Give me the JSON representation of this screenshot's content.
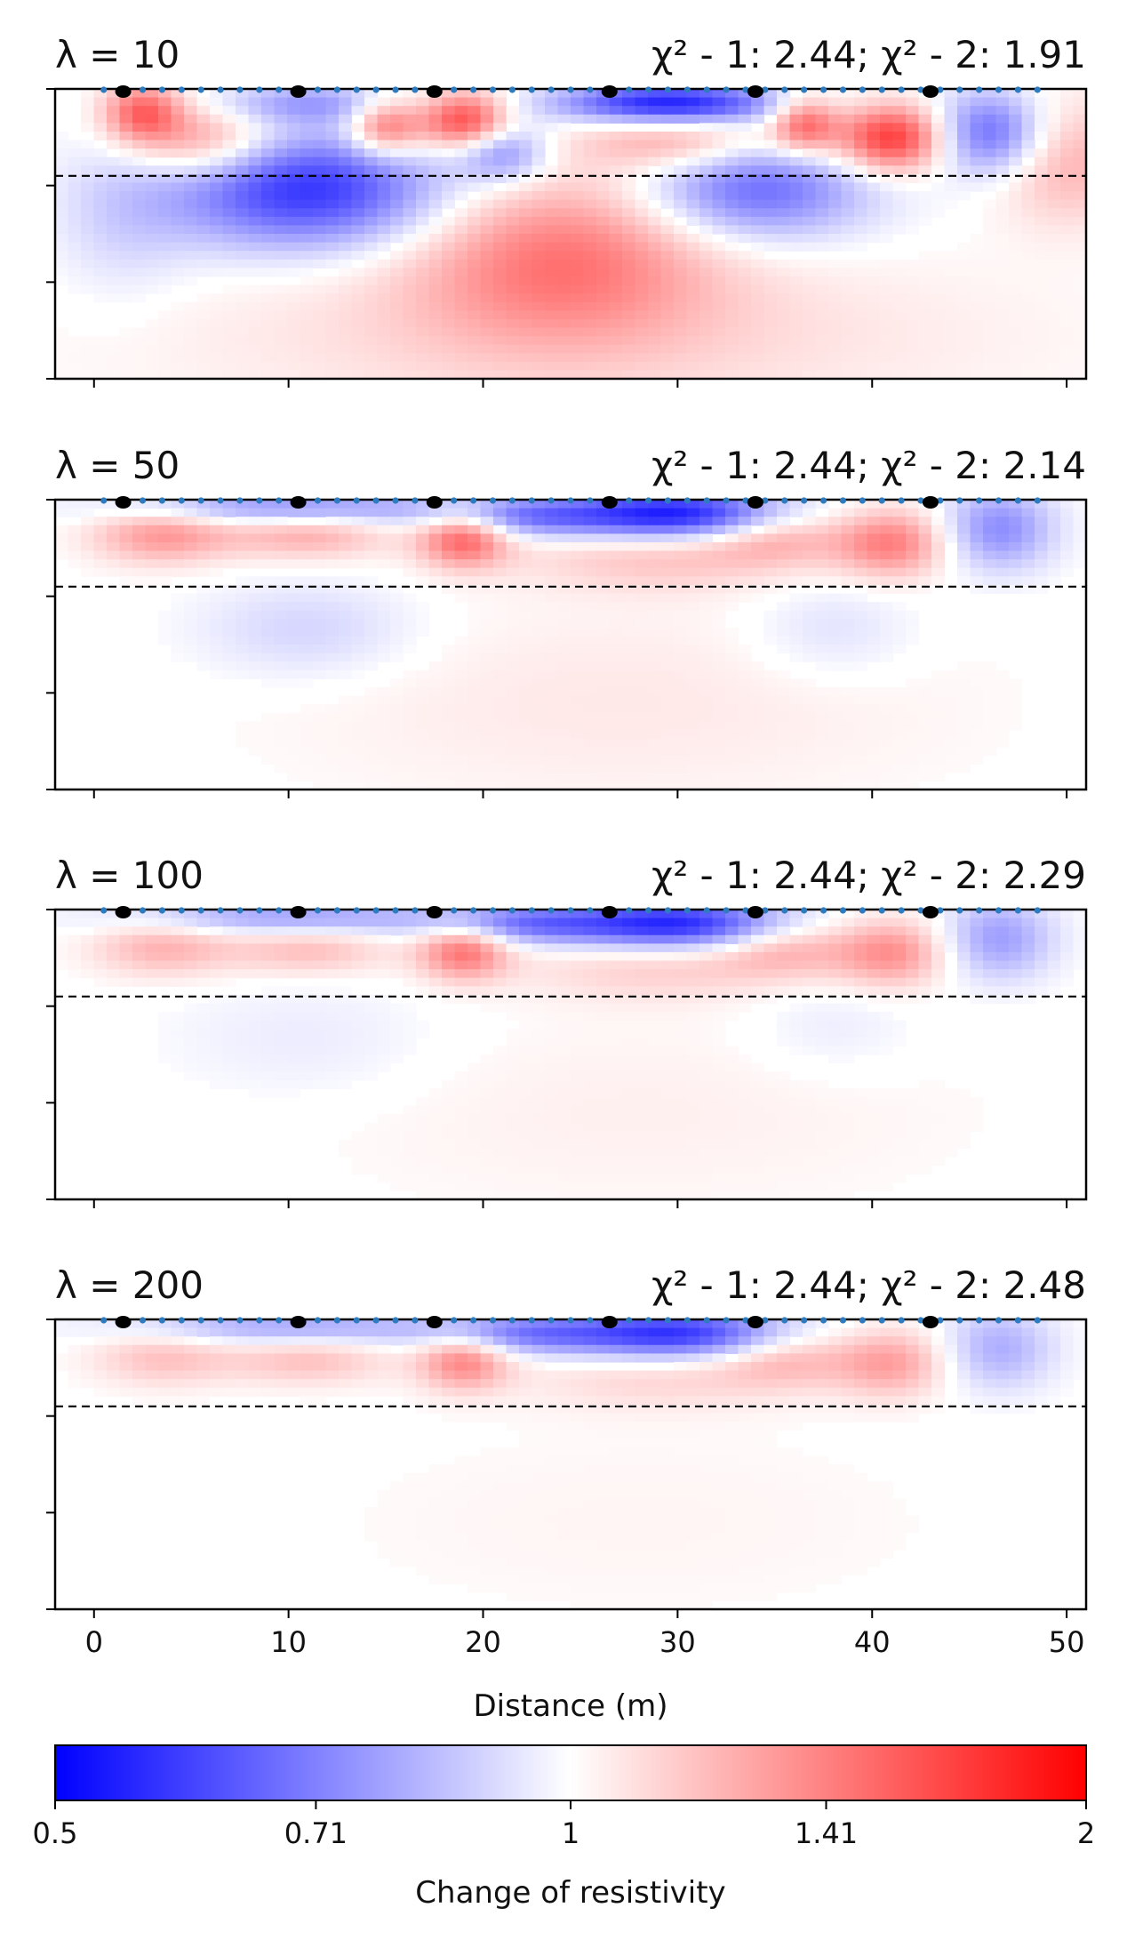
{
  "chart_data": {
    "type": "heatmap",
    "colormap": {
      "low": "#0000ff",
      "mid": "#ffffff",
      "high": "#ff0000",
      "scale": "log2"
    },
    "xlim": [
      -2,
      51
    ],
    "xticks": [
      0,
      10,
      20,
      30,
      40,
      50
    ],
    "xlabel": "Distance (m)",
    "dashed_depth_fraction": 0.3,
    "electrodes_small_x": [
      0.5,
      1.5,
      2.5,
      3.5,
      4.5,
      5.5,
      6.5,
      7.5,
      8.5,
      9.5,
      10.5,
      11.5,
      12.5,
      13.5,
      14.5,
      15.5,
      16.5,
      17.5,
      18.5,
      19.5,
      20.5,
      21.5,
      22.5,
      23.5,
      24.5,
      25.5,
      26.5,
      27.5,
      28.5,
      29.5,
      30.5,
      31.5,
      32.5,
      33.5,
      34.5,
      35.5,
      36.5,
      37.5,
      38.5,
      39.5,
      40.5,
      41.5,
      42.5,
      43.5,
      44.5,
      45.5,
      46.5,
      47.5,
      48.5
    ],
    "electrodes_large_x": [
      1.5,
      10.5,
      17.5,
      26.5,
      34,
      43
    ],
    "panels": [
      {
        "lambda_label": "λ = 10",
        "chi_label": "χ² - 1: 2.44; χ² - 2: 1.91",
        "strength": 1.0,
        "anomalies": [
          {
            "x": 2.5,
            "d": 0.08,
            "sx": 1.4,
            "sd": 0.07,
            "v": 0.6
          },
          {
            "x": 5.5,
            "d": 0.18,
            "sx": 2.6,
            "sd": 0.09,
            "v": 0.45
          },
          {
            "x": 11,
            "d": 0.35,
            "sx": 5.0,
            "sd": 0.14,
            "v": -0.8
          },
          {
            "x": 11,
            "d": 0.05,
            "sx": 3.5,
            "sd": 0.05,
            "v": -0.35
          },
          {
            "x": 15,
            "d": 0.13,
            "sx": 1.3,
            "sd": 0.07,
            "v": 0.6
          },
          {
            "x": 19,
            "d": 0.11,
            "sx": 1.6,
            "sd": 0.07,
            "v": 0.75
          },
          {
            "x": 21,
            "d": 0.22,
            "sx": 1.6,
            "sd": 0.07,
            "v": -0.45
          },
          {
            "x": 24,
            "d": 0.58,
            "sx": 5.5,
            "sd": 0.2,
            "v": 0.5
          },
          {
            "x": 29.5,
            "d": 0.05,
            "sx": 4.0,
            "sd": 0.05,
            "v": -0.9
          },
          {
            "x": 30,
            "d": 0.18,
            "sx": 3.5,
            "sd": 0.07,
            "v": 0.35
          },
          {
            "x": 34,
            "d": 0.35,
            "sx": 4.0,
            "sd": 0.12,
            "v": -0.6
          },
          {
            "x": 36.5,
            "d": 0.12,
            "sx": 1.2,
            "sd": 0.07,
            "v": 0.6
          },
          {
            "x": 41,
            "d": 0.17,
            "sx": 2.0,
            "sd": 0.08,
            "v": 0.8
          },
          {
            "x": 46,
            "d": 0.15,
            "sx": 2.0,
            "sd": 0.1,
            "v": -0.6
          },
          {
            "x": 50,
            "d": 0.25,
            "sx": 2.5,
            "sd": 0.15,
            "v": 0.3
          },
          {
            "x": 1.5,
            "d": 0.45,
            "sx": 2.5,
            "sd": 0.2,
            "v": -0.15
          },
          {
            "x": 25,
            "d": 0.85,
            "sx": 15,
            "sd": 0.2,
            "v": 0.15
          }
        ]
      },
      {
        "lambda_label": "λ = 50",
        "chi_label": "χ² - 1: 2.44; χ² - 2: 2.14",
        "strength": 0.9,
        "anomalies": [
          {
            "x": 3.5,
            "d": 0.12,
            "sx": 2.5,
            "sd": 0.07,
            "v": 0.45
          },
          {
            "x": 11,
            "d": 0.12,
            "sx": 3.0,
            "sd": 0.06,
            "v": 0.35
          },
          {
            "x": 10,
            "d": 0.03,
            "sx": 6.0,
            "sd": 0.04,
            "v": -0.5
          },
          {
            "x": 19,
            "d": 0.13,
            "sx": 1.6,
            "sd": 0.07,
            "v": 0.7
          },
          {
            "x": 22,
            "d": 0.06,
            "sx": 3.5,
            "sd": 0.05,
            "v": -0.5
          },
          {
            "x": 30,
            "d": 0.05,
            "sx": 4.0,
            "sd": 0.06,
            "v": -1.0
          },
          {
            "x": 29,
            "d": 0.2,
            "sx": 5.0,
            "sd": 0.08,
            "v": 0.25
          },
          {
            "x": 35,
            "d": 0.12,
            "sx": 2.5,
            "sd": 0.07,
            "v": 0.35
          },
          {
            "x": 41,
            "d": 0.15,
            "sx": 2.0,
            "sd": 0.08,
            "v": 0.55
          },
          {
            "x": 46.5,
            "d": 0.1,
            "sx": 2.0,
            "sd": 0.1,
            "v": -0.5
          },
          {
            "x": 11,
            "d": 0.45,
            "sx": 4.0,
            "sd": 0.12,
            "v": -0.2
          },
          {
            "x": 38,
            "d": 0.45,
            "sx": 3.0,
            "sd": 0.12,
            "v": -0.15
          },
          {
            "x": 27,
            "d": 0.7,
            "sx": 12,
            "sd": 0.25,
            "v": 0.1
          }
        ]
      },
      {
        "lambda_label": "λ = 100",
        "chi_label": "χ² - 1: 2.44; χ² - 2: 2.29",
        "strength": 0.85,
        "anomalies": [
          {
            "x": 3.5,
            "d": 0.13,
            "sx": 2.5,
            "sd": 0.07,
            "v": 0.35
          },
          {
            "x": 11,
            "d": 0.14,
            "sx": 3.0,
            "sd": 0.06,
            "v": 0.3
          },
          {
            "x": 10,
            "d": 0.03,
            "sx": 6.0,
            "sd": 0.04,
            "v": -0.45
          },
          {
            "x": 19,
            "d": 0.14,
            "sx": 1.6,
            "sd": 0.07,
            "v": 0.65
          },
          {
            "x": 22,
            "d": 0.05,
            "sx": 3.5,
            "sd": 0.05,
            "v": -0.55
          },
          {
            "x": 30,
            "d": 0.05,
            "sx": 4.0,
            "sd": 0.06,
            "v": -1.0
          },
          {
            "x": 29,
            "d": 0.2,
            "sx": 5.0,
            "sd": 0.08,
            "v": 0.22
          },
          {
            "x": 35.5,
            "d": 0.13,
            "sx": 2.5,
            "sd": 0.07,
            "v": 0.35
          },
          {
            "x": 41,
            "d": 0.15,
            "sx": 2.0,
            "sd": 0.08,
            "v": 0.5
          },
          {
            "x": 46.5,
            "d": 0.1,
            "sx": 2.0,
            "sd": 0.1,
            "v": -0.45
          },
          {
            "x": 11,
            "d": 0.45,
            "sx": 5.0,
            "sd": 0.15,
            "v": -0.1
          },
          {
            "x": 38,
            "d": 0.4,
            "sx": 3.0,
            "sd": 0.12,
            "v": -0.1
          },
          {
            "x": 28,
            "d": 0.7,
            "sx": 12,
            "sd": 0.25,
            "v": 0.07
          }
        ]
      },
      {
        "lambda_label": "λ = 200",
        "chi_label": "χ² - 1: 2.44; χ² - 2: 2.48",
        "strength": 0.8,
        "anomalies": [
          {
            "x": 3.5,
            "d": 0.13,
            "sx": 2.5,
            "sd": 0.07,
            "v": 0.3
          },
          {
            "x": 11,
            "d": 0.14,
            "sx": 3.0,
            "sd": 0.06,
            "v": 0.3
          },
          {
            "x": 10,
            "d": 0.03,
            "sx": 6.0,
            "sd": 0.04,
            "v": -0.45
          },
          {
            "x": 19,
            "d": 0.14,
            "sx": 1.6,
            "sd": 0.07,
            "v": 0.6
          },
          {
            "x": 22,
            "d": 0.05,
            "sx": 3.5,
            "sd": 0.05,
            "v": -0.55
          },
          {
            "x": 30,
            "d": 0.05,
            "sx": 4.0,
            "sd": 0.06,
            "v": -1.0
          },
          {
            "x": 29,
            "d": 0.2,
            "sx": 5.0,
            "sd": 0.08,
            "v": 0.2
          },
          {
            "x": 35.5,
            "d": 0.13,
            "sx": 2.5,
            "sd": 0.07,
            "v": 0.35
          },
          {
            "x": 41,
            "d": 0.15,
            "sx": 2.0,
            "sd": 0.08,
            "v": 0.45
          },
          {
            "x": 46.5,
            "d": 0.1,
            "sx": 2.0,
            "sd": 0.1,
            "v": -0.4
          },
          {
            "x": 28,
            "d": 0.7,
            "sx": 12,
            "sd": 0.25,
            "v": 0.05
          }
        ]
      }
    ],
    "colorbar": {
      "label": "Change of resistivity",
      "range": [
        0.5,
        2
      ],
      "ticks": [
        0.5,
        0.71,
        1,
        1.41,
        2
      ],
      "tick_labels": [
        "0.5",
        "0.71",
        "1",
        "1.41",
        "2"
      ]
    }
  }
}
